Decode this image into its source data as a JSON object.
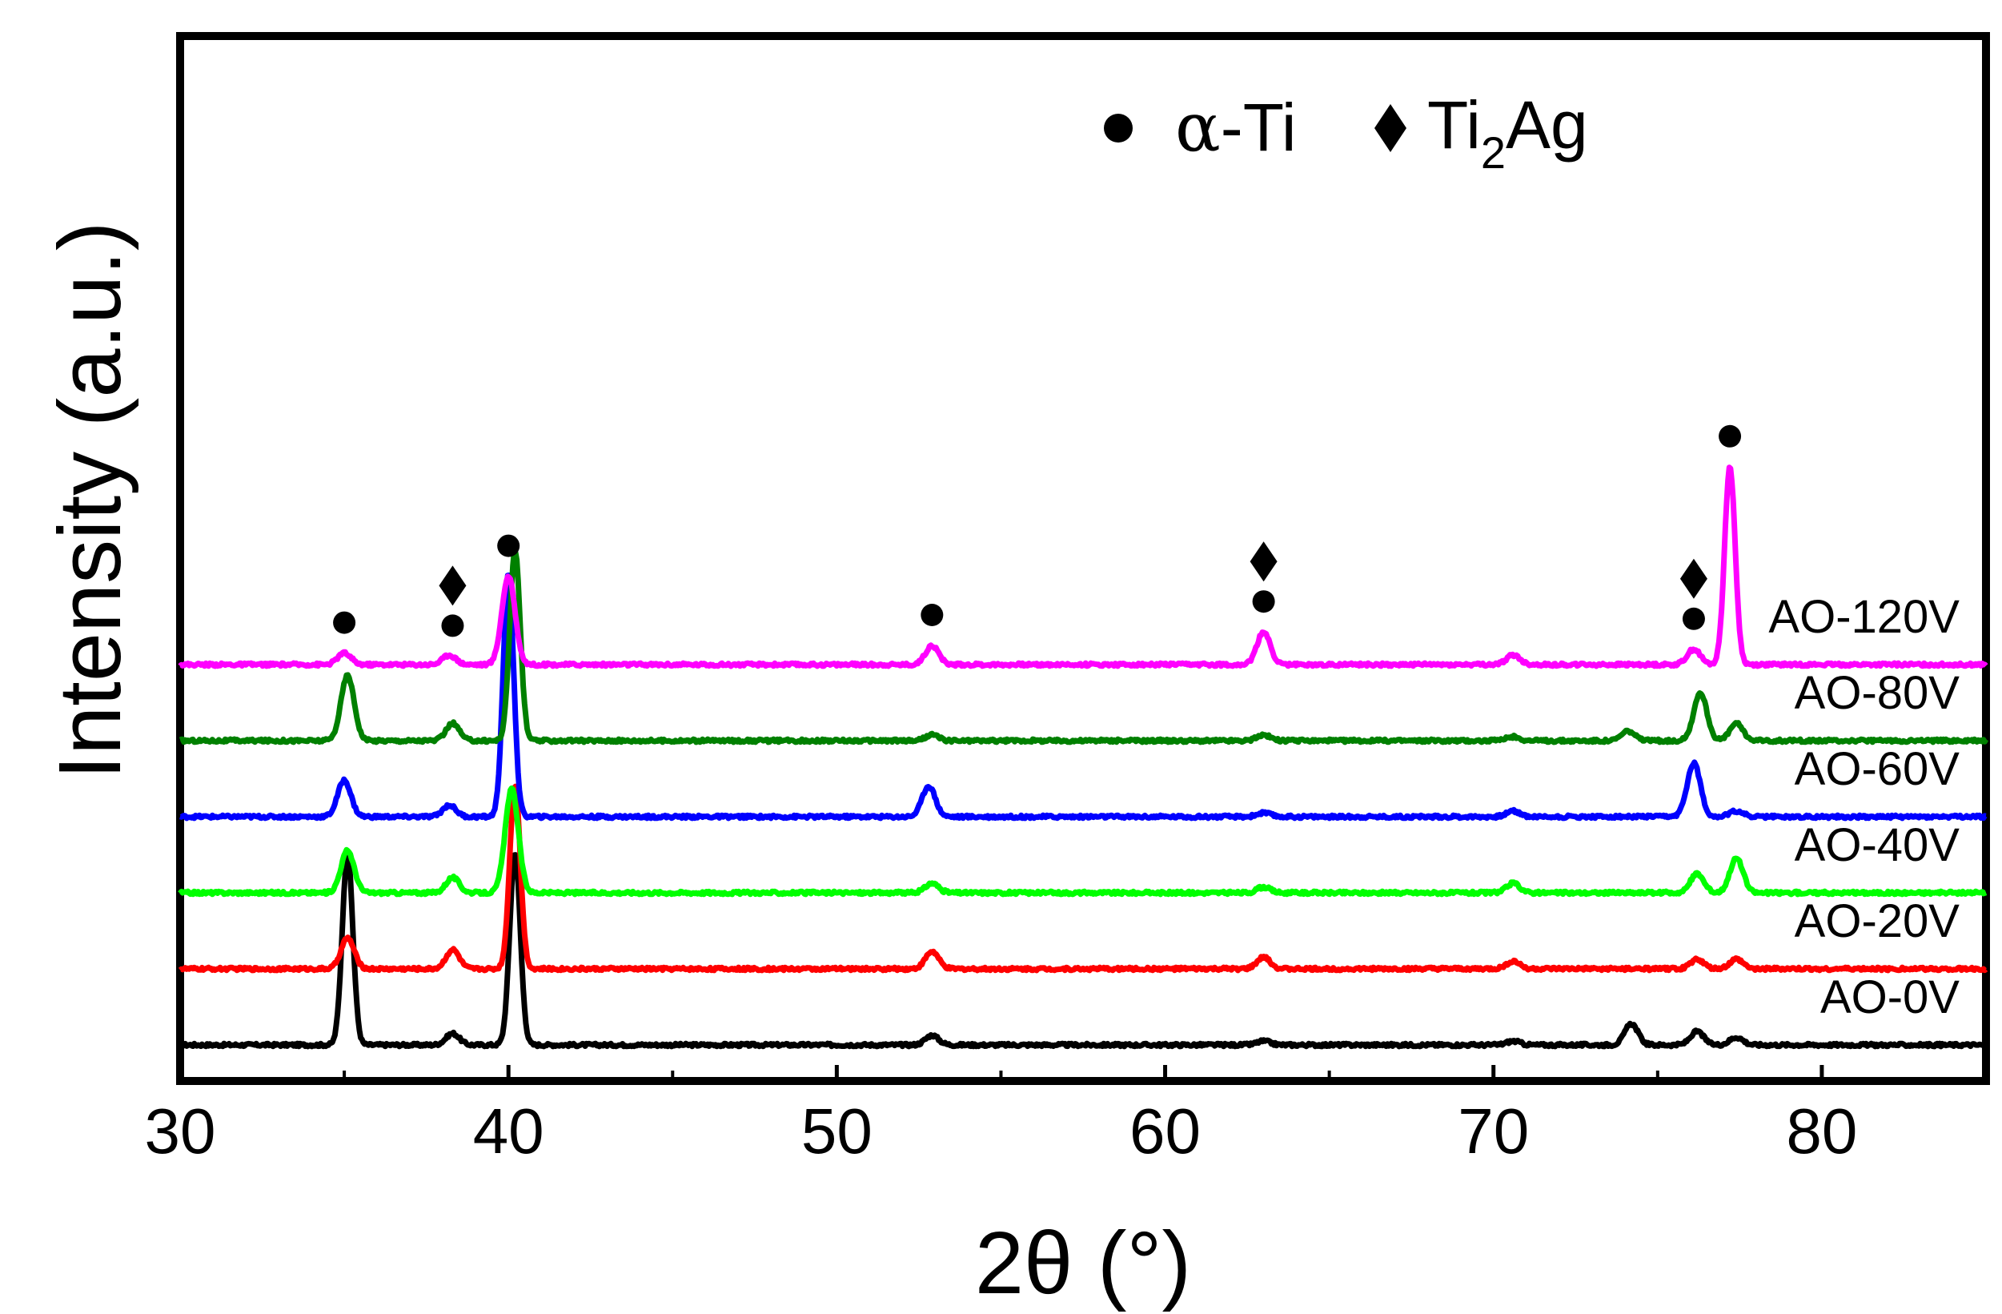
{
  "chart_data": {
    "type": "line",
    "title": "",
    "xlabel": "2θ (°)",
    "ylabel": "Intensity (a.u.)",
    "xlim": [
      30,
      85
    ],
    "xticks": [
      30,
      40,
      50,
      60,
      70,
      80
    ],
    "x_tick_labels": [
      "30",
      "40",
      "50",
      "60",
      "70",
      "80"
    ],
    "grid": false,
    "legend": {
      "position": "top-right",
      "entries": [
        {
          "marker": "circle",
          "greek": "α",
          "text": "-Ti",
          "phase": "α-Ti"
        },
        {
          "marker": "diamond",
          "base": "Ti",
          "sub": "2",
          "suffix": "Ag",
          "phase": "Ti2Ag"
        }
      ]
    },
    "series": [
      {
        "name": "AO-0V",
        "color": "#000000",
        "offset": 0,
        "peaks": [
          [
            35.1,
            100
          ],
          [
            38.3,
            6
          ],
          [
            40.2,
            100
          ],
          [
            52.9,
            5
          ],
          [
            63.0,
            2
          ],
          [
            70.6,
            2
          ],
          [
            74.2,
            11
          ],
          [
            76.2,
            7
          ],
          [
            77.4,
            4
          ]
        ]
      },
      {
        "name": "AO-20V",
        "color": "#ff0000",
        "offset": 1,
        "peaks": [
          [
            35.1,
            16
          ],
          [
            38.3,
            10
          ],
          [
            40.2,
            96
          ],
          [
            52.9,
            9
          ],
          [
            63.0,
            6
          ],
          [
            70.6,
            4
          ],
          [
            76.2,
            5
          ],
          [
            77.4,
            5
          ]
        ]
      },
      {
        "name": "AO-40V",
        "color": "#00ff00",
        "offset": 2,
        "peaks": [
          [
            35.1,
            22
          ],
          [
            38.3,
            8
          ],
          [
            40.1,
            54
          ],
          [
            52.9,
            5
          ],
          [
            63.0,
            3
          ],
          [
            70.6,
            5
          ],
          [
            76.2,
            10
          ],
          [
            77.4,
            18
          ]
        ]
      },
      {
        "name": "AO-60V",
        "color": "#0000ff",
        "offset": 3,
        "peaks": [
          [
            35.0,
            19
          ],
          [
            38.2,
            6
          ],
          [
            40.0,
            126
          ],
          [
            52.8,
            16
          ],
          [
            63.0,
            2
          ],
          [
            70.6,
            3
          ],
          [
            76.1,
            28
          ],
          [
            77.4,
            3
          ]
        ]
      },
      {
        "name": "AO-80V",
        "color": "#008000",
        "offset": 4,
        "peaks": [
          [
            35.1,
            34
          ],
          [
            38.3,
            9
          ],
          [
            40.2,
            99
          ],
          [
            52.9,
            3
          ],
          [
            63.0,
            3
          ],
          [
            70.6,
            2
          ],
          [
            74.1,
            5
          ],
          [
            76.3,
            25
          ],
          [
            77.4,
            9
          ]
        ]
      },
      {
        "name": "AO-120V",
        "color": "#ff00ff",
        "offset": 5,
        "peaks": [
          [
            35.0,
            6
          ],
          [
            38.2,
            5
          ],
          [
            40.0,
            46
          ],
          [
            52.9,
            10
          ],
          [
            63.0,
            17
          ],
          [
            70.6,
            5
          ],
          [
            76.1,
            8
          ],
          [
            77.2,
            103
          ]
        ]
      }
    ],
    "phase_markers": [
      {
        "x": 35.0,
        "markers": [
          "circle"
        ]
      },
      {
        "x": 38.3,
        "markers": [
          "circle",
          "diamond"
        ]
      },
      {
        "x": 40.0,
        "markers": [
          "circle"
        ]
      },
      {
        "x": 52.9,
        "markers": [
          "circle"
        ]
      },
      {
        "x": 63.0,
        "markers": [
          "circle",
          "diamond"
        ]
      },
      {
        "x": 76.1,
        "markers": [
          "circle",
          "diamond"
        ]
      },
      {
        "x": 77.2,
        "markers": [
          "circle"
        ]
      }
    ]
  }
}
